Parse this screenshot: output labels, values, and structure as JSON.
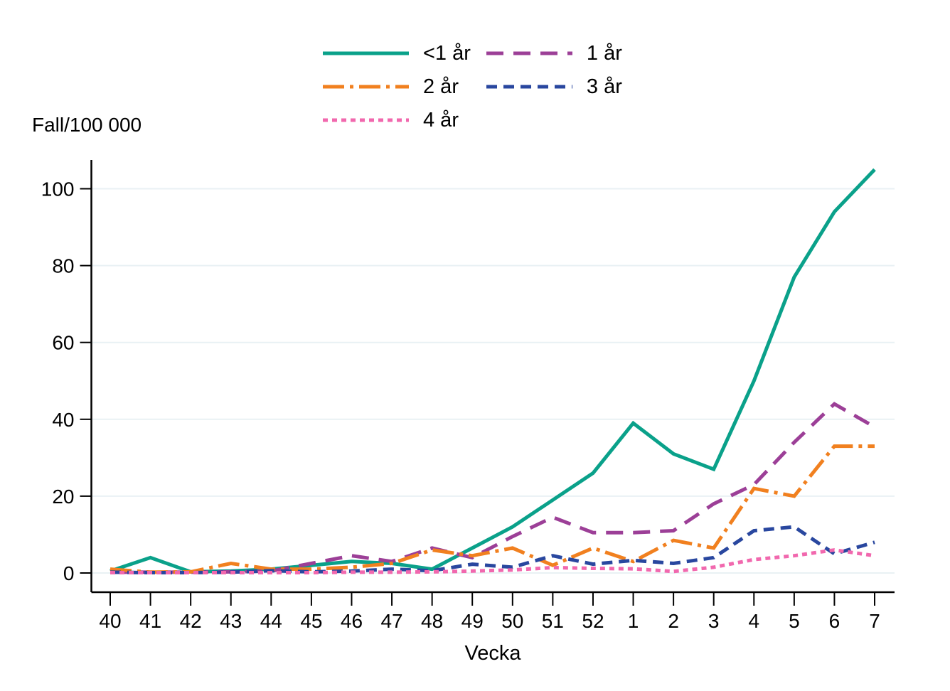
{
  "chart_data": {
    "type": "line",
    "title": "",
    "ylabel": "Fall/100 000",
    "xlabel": "Vecka",
    "x_categories": [
      "40",
      "41",
      "42",
      "43",
      "44",
      "45",
      "46",
      "47",
      "48",
      "49",
      "50",
      "51",
      "52",
      "1",
      "2",
      "3",
      "4",
      "5",
      "6",
      "7"
    ],
    "yticks": [
      0,
      20,
      40,
      60,
      80,
      100
    ],
    "ylim": [
      0,
      108
    ],
    "grid": "horizontal",
    "legend_position": "top-center",
    "gridline_color": "#e9f1f4",
    "axis_color": "#000000",
    "series": [
      {
        "name": "<1 år",
        "color": "#0aa18a",
        "dash": "solid",
        "values": [
          0.5,
          4,
          0.3,
          0.5,
          1,
          2,
          3,
          2.5,
          1,
          6.5,
          12,
          19,
          26,
          39,
          31,
          27,
          50,
          77,
          94,
          105
        ]
      },
      {
        "name": "1 år",
        "color": "#9c3f97",
        "dash": "long-dash",
        "values": [
          0.2,
          0.2,
          0.2,
          0.3,
          0.5,
          2.5,
          4.5,
          3,
          6.5,
          4,
          9.5,
          14.5,
          10.5,
          10.5,
          11,
          18,
          23,
          34,
          44,
          38
        ]
      },
      {
        "name": "2 år",
        "color": "#f1801f",
        "dash": "dash-dot",
        "values": [
          1,
          0.2,
          0.3,
          2.5,
          1,
          1,
          1.5,
          2.5,
          6,
          4.5,
          6.5,
          2,
          6.5,
          3,
          8.5,
          6.5,
          22,
          20,
          33,
          33
        ]
      },
      {
        "name": "3 år",
        "color": "#29479f",
        "dash": "dash",
        "values": [
          0.2,
          0.1,
          0.1,
          0.2,
          0.6,
          0.3,
          0.5,
          1,
          0.6,
          2.3,
          1.5,
          4.5,
          2.3,
          3.3,
          2.5,
          4,
          11,
          12,
          5,
          8
        ]
      },
      {
        "name": "4 år",
        "color": "#f168ae",
        "dash": "dot",
        "values": [
          0.1,
          0.1,
          0.1,
          0.1,
          0.1,
          0.1,
          0.2,
          0.2,
          0.3,
          0.5,
          0.8,
          1.4,
          1.2,
          1.1,
          0.4,
          1.5,
          3.5,
          4.5,
          6,
          4.5
        ]
      }
    ]
  }
}
